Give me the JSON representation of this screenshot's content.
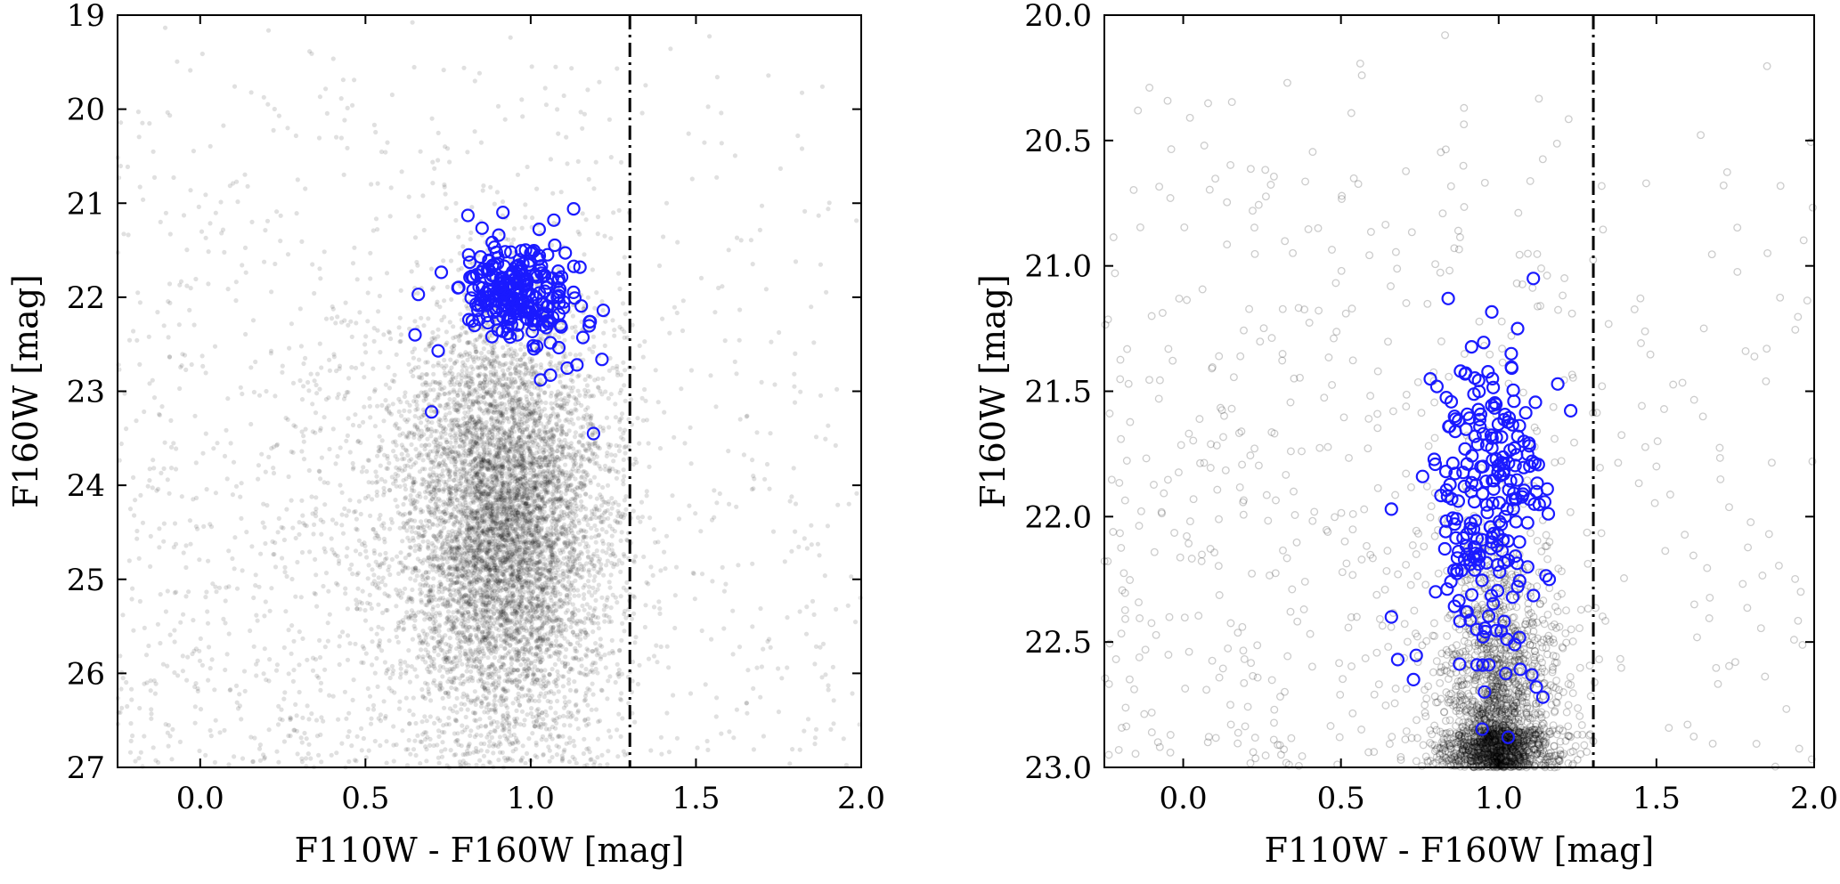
{
  "chart_data": [
    {
      "type": "scatter",
      "xlabel": "F110W - F160W [mag]",
      "ylabel": "F160W [mag]",
      "xlim": [
        -0.25,
        2.0
      ],
      "ylim": [
        19,
        27
      ],
      "y_inverted": true,
      "xticks": [
        "0.0",
        "0.5",
        "1.0",
        "1.5",
        "2.0"
      ],
      "yticks": [
        "19",
        "20",
        "21",
        "22",
        "23",
        "24",
        "25",
        "26",
        "27"
      ],
      "cutoff_line": {
        "x": 1.3,
        "style": "dash-dot",
        "color": "#000000"
      },
      "series": [
        {
          "marker": "filled-dot",
          "color": "#000000",
          "opacity": 0.12,
          "count": 9000,
          "distribution": {
            "center_color": 0.92,
            "center_mag": 24.4,
            "spread_color": 0.16,
            "spread_mag": 1.1,
            "halo_fraction": 0.22
          },
          "values": [
            [
              1.25,
              21.1
            ],
            [
              -0.12,
              21.2
            ],
            [
              0.4,
              22.1
            ],
            [
              0.2,
              23.0
            ],
            [
              0.6,
              25.5
            ],
            [
              1.0,
              24.0
            ],
            [
              0.9,
              24.6
            ],
            [
              1.8,
              22.6
            ],
            [
              1.6,
              24.2
            ],
            [
              0.3,
              26.2
            ]
          ]
        },
        {
          "marker": "open-circle",
          "color": "#1a1aff",
          "values": [
            [
              0.81,
              21.13
            ],
            [
              1.13,
              21.06
            ],
            [
              0.66,
              21.97
            ],
            [
              0.65,
              22.4
            ],
            [
              0.72,
              22.57
            ],
            [
              0.7,
              23.22
            ],
            [
              1.03,
              22.88
            ],
            [
              1.14,
              22.72
            ],
            [
              1.19,
              23.45
            ],
            [
              1.18,
              22.26
            ],
            [
              0.94,
              21.52
            ],
            [
              1.07,
              21.18
            ],
            [
              0.87,
              21.7
            ],
            [
              0.92,
              21.95
            ],
            [
              0.99,
              22.1
            ],
            [
              1.05,
              21.85
            ],
            [
              0.83,
              22.3
            ],
            [
              0.78,
              21.9
            ],
            [
              1.1,
              22.05
            ],
            [
              0.96,
              22.4
            ]
          ]
        }
      ]
    },
    {
      "type": "scatter",
      "xlabel": "F110W - F160W [mag]",
      "ylabel": "F160W [mag]",
      "xlim": [
        -0.25,
        2.0
      ],
      "ylim": [
        20.0,
        23.0
      ],
      "y_inverted": true,
      "xticks": [
        "0.0",
        "0.5",
        "1.0",
        "1.5",
        "2.0"
      ],
      "yticks": [
        "20.0",
        "20.5",
        "21.0",
        "21.5",
        "22.0",
        "22.5",
        "23.0"
      ],
      "cutoff_line": {
        "x": 1.3,
        "style": "dash-dot",
        "color": "#000000"
      },
      "series": [
        {
          "marker": "open-circle",
          "color": "#000000",
          "opacity": 0.2,
          "count": 2800,
          "distribution": {
            "center_color": 1.0,
            "center_mag": 22.9,
            "spread_color": 0.09,
            "spread_mag": 0.35,
            "halo_fraction": 0.3
          },
          "values": [
            [
              0.83,
              20.08
            ],
            [
              0.89,
              20.37
            ],
            [
              0.33,
              20.27
            ],
            [
              0.22,
              20.78
            ],
            [
              -0.1,
              21.2
            ],
            [
              1.5,
              21.8
            ],
            [
              1.62,
              22.35
            ],
            [
              0.55,
              22.4
            ],
            [
              1.75,
              22.58
            ],
            [
              0.95,
              21.6
            ]
          ]
        },
        {
          "marker": "open-circle",
          "color": "#1a1aff",
          "values": [
            [
              1.11,
              21.05
            ],
            [
              0.84,
              21.13
            ],
            [
              1.06,
              21.25
            ],
            [
              0.66,
              21.97
            ],
            [
              0.66,
              22.4
            ],
            [
              0.68,
              22.57
            ],
            [
              0.73,
              22.65
            ],
            [
              1.03,
              22.88
            ],
            [
              1.14,
              22.72
            ],
            [
              1.16,
              22.25
            ],
            [
              0.86,
              21.6
            ],
            [
              0.95,
              21.8
            ],
            [
              1.02,
              22.0
            ],
            [
              0.9,
              22.15
            ],
            [
              1.08,
              21.7
            ],
            [
              0.98,
              21.45
            ],
            [
              0.8,
              22.3
            ],
            [
              1.12,
              21.9
            ],
            [
              0.93,
              22.45
            ],
            [
              1.04,
              21.35
            ]
          ]
        }
      ]
    }
  ]
}
